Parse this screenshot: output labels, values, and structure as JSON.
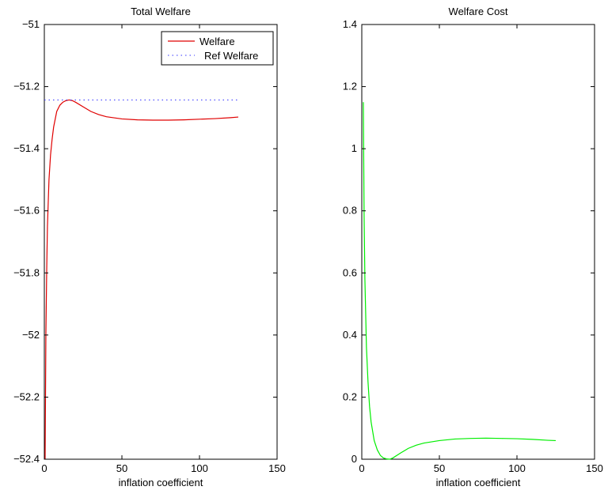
{
  "chart_data": [
    {
      "type": "line",
      "title": "Total Welfare",
      "xlabel": "inflation coefficient",
      "ylabel": "",
      "xlim": [
        0,
        150
      ],
      "ylim": [
        -52.4,
        -51
      ],
      "xticks": [
        0,
        50,
        100,
        150
      ],
      "xtick_labels": [
        "0",
        "50",
        "100",
        "150"
      ],
      "yticks": [
        -52.4,
        -52.2,
        -52,
        -51.8,
        -51.6,
        -51.4,
        -51.2,
        -51
      ],
      "ytick_labels": [
        "−52.4",
        "−52.2",
        "−52",
        "−51.8",
        "−51.6",
        "−51.4",
        "−51.2",
        "−51"
      ],
      "grid": false,
      "legend": "top-right",
      "series": [
        {
          "name": "Welfare",
          "color": "#e00000",
          "style": "solid",
          "x": [
            0.5,
            1,
            1.5,
            2,
            3,
            4,
            5,
            6,
            8,
            10,
            12,
            14,
            16,
            18,
            20,
            25,
            30,
            35,
            40,
            50,
            60,
            70,
            80,
            90,
            100,
            110,
            120,
            125
          ],
          "y": [
            -52.4,
            -52.0,
            -51.8,
            -51.65,
            -51.5,
            -51.42,
            -51.37,
            -51.33,
            -51.28,
            -51.26,
            -51.25,
            -51.245,
            -51.243,
            -51.245,
            -51.25,
            -51.265,
            -51.28,
            -51.29,
            -51.297,
            -51.304,
            -51.307,
            -51.308,
            -51.308,
            -51.307,
            -51.305,
            -51.303,
            -51.3,
            -51.298
          ]
        },
        {
          "name": "Ref Welfare",
          "color": "#3333ff",
          "style": "dotted",
          "x": [
            0,
            125
          ],
          "y": [
            -51.243,
            -51.243
          ]
        }
      ]
    },
    {
      "type": "line",
      "title": "Welfare Cost",
      "xlabel": "inflation coefficient",
      "ylabel": "",
      "xlim": [
        0,
        150
      ],
      "ylim": [
        0,
        1.4
      ],
      "xticks": [
        0,
        50,
        100,
        150
      ],
      "xtick_labels": [
        "0",
        "50",
        "100",
        "150"
      ],
      "yticks": [
        0,
        0.2,
        0.4,
        0.6,
        0.8,
        1,
        1.2,
        1.4
      ],
      "ytick_labels": [
        "0",
        "0.2",
        "0.4",
        "0.6",
        "0.8",
        "1",
        "1.2",
        "1.4"
      ],
      "grid": false,
      "series": [
        {
          "name": "",
          "color": "#00ee00",
          "style": "solid",
          "x": [
            1,
            1.5,
            2,
            3,
            4,
            5,
            6,
            8,
            10,
            12,
            14,
            16,
            18,
            20,
            25,
            30,
            35,
            40,
            50,
            60,
            70,
            80,
            90,
            100,
            110,
            120,
            125
          ],
          "y": [
            1.15,
            0.78,
            0.58,
            0.36,
            0.25,
            0.17,
            0.12,
            0.06,
            0.03,
            0.012,
            0.004,
            0.001,
            0.0,
            0.004,
            0.02,
            0.035,
            0.045,
            0.052,
            0.06,
            0.065,
            0.067,
            0.068,
            0.067,
            0.066,
            0.064,
            0.061,
            0.06
          ]
        }
      ]
    }
  ]
}
